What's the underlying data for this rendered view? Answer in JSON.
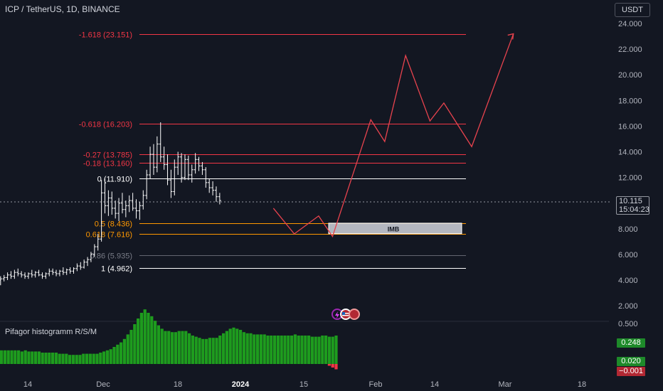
{
  "header": {
    "symbol_title": "ICP / TetherUS, 1D, BINANCE",
    "currency": "USDT"
  },
  "indicator": {
    "title": "Pifagor histogramm R/S/M"
  },
  "last_price": {
    "value": "10.115",
    "countdown": "15:04:23"
  },
  "indicator_badges": [
    "0.248",
    "0.020",
    "−0.001"
  ],
  "colors": {
    "background": "#131722",
    "fib_red": "#f23645",
    "fib_orange": "#ff9800",
    "fib_white": "#ffffff",
    "fib_gray": "#787b86",
    "hist_green": "#4caf50",
    "hist_red": "#f23645",
    "path_red": "#e8434e",
    "imb_box": "#d1d4dc"
  },
  "icons": [
    "lightning-event-icon",
    "us-flag-event-icon",
    "economic-event-icon"
  ],
  "chart_data": {
    "type": "candlestick",
    "symbol": "ICP / TetherUS",
    "timeframe": "1D",
    "exchange": "BINANCE",
    "price_axis": {
      "ticks": [
        "24.000",
        "22.000",
        "20.000",
        "18.000",
        "16.000",
        "14.000",
        "12.000",
        "10.000",
        "8.000",
        "6.000",
        "4.000",
        "2.000"
      ],
      "range": [
        1.0,
        24.5
      ]
    },
    "time_axis": {
      "labels": [
        "14",
        "Dec",
        "18",
        "2024",
        "15",
        "Feb",
        "14",
        "Mar",
        "18"
      ]
    },
    "fib_levels": [
      {
        "label": "-1.618 (23.151)",
        "price": 23.151,
        "color": "red"
      },
      {
        "label": "-0.618 (16.203)",
        "price": 16.203,
        "color": "red"
      },
      {
        "label": "-0.27 (13.785)",
        "price": 13.785,
        "color": "red"
      },
      {
        "label": "-0.18 (13.160)",
        "price": 13.16,
        "color": "red"
      },
      {
        "label": "0 (11.910)",
        "price": 11.91,
        "color": "white"
      },
      {
        "label": "0.5 (8.436)",
        "price": 8.436,
        "color": "orange"
      },
      {
        "label": "0.618 (7.616)",
        "price": 7.616,
        "color": "orange"
      },
      {
        "label": "0.86 (5.935)",
        "price": 5.935,
        "color": "gray"
      },
      {
        "label": "1 (4.962)",
        "price": 4.962,
        "color": "white"
      }
    ],
    "imbalance_zone": {
      "label": "IMB",
      "top": 8.436,
      "bottom": 7.616
    },
    "projection_path": [
      {
        "date": "Jan 21",
        "price": 9.6
      },
      {
        "date": "Jan 27",
        "price": 7.6
      },
      {
        "date": "Feb 3",
        "price": 9.0
      },
      {
        "date": "Feb 7",
        "price": 7.4
      },
      {
        "date": "Feb 18",
        "price": 16.5
      },
      {
        "date": "Feb 22",
        "price": 14.8
      },
      {
        "date": "Feb 28",
        "price": 21.5
      },
      {
        "date": "Mar 6",
        "price": 16.4
      },
      {
        "date": "Mar 10",
        "price": 17.8
      },
      {
        "date": "Mar 18",
        "price": 14.4
      },
      {
        "date": "Mar 30",
        "price": 23.2
      }
    ],
    "candles": [
      [
        4.0,
        4.3,
        3.6,
        4.1
      ],
      [
        4.1,
        4.4,
        3.9,
        4.2
      ],
      [
        4.2,
        4.6,
        4.0,
        4.4
      ],
      [
        4.4,
        4.7,
        4.1,
        4.3
      ],
      [
        4.3,
        4.8,
        4.1,
        4.6
      ],
      [
        4.6,
        4.9,
        4.3,
        4.5
      ],
      [
        4.5,
        4.7,
        4.2,
        4.4
      ],
      [
        4.4,
        4.6,
        4.1,
        4.3
      ],
      [
        4.3,
        4.6,
        4.1,
        4.5
      ],
      [
        4.5,
        4.8,
        4.2,
        4.4
      ],
      [
        4.4,
        4.7,
        4.2,
        4.6
      ],
      [
        4.6,
        4.8,
        4.3,
        4.4
      ],
      [
        4.4,
        4.6,
        4.1,
        4.3
      ],
      [
        4.3,
        4.6,
        4.1,
        4.5
      ],
      [
        4.5,
        4.9,
        4.3,
        4.7
      ],
      [
        4.7,
        4.9,
        4.4,
        4.6
      ],
      [
        4.6,
        4.8,
        4.3,
        4.5
      ],
      [
        4.5,
        4.8,
        4.3,
        4.7
      ],
      [
        4.7,
        5.0,
        4.4,
        4.6
      ],
      [
        4.6,
        4.9,
        4.4,
        4.8
      ],
      [
        4.8,
        5.0,
        4.5,
        4.7
      ],
      [
        4.7,
        5.0,
        4.5,
        4.9
      ],
      [
        4.9,
        5.3,
        4.7,
        5.1
      ],
      [
        5.1,
        5.4,
        4.8,
        5.0
      ],
      [
        5.0,
        5.6,
        4.9,
        5.4
      ],
      [
        5.4,
        5.8,
        5.1,
        5.6
      ],
      [
        5.6,
        6.2,
        5.4,
        6.0
      ],
      [
        6.0,
        6.8,
        5.8,
        6.6
      ],
      [
        6.6,
        7.6,
        6.3,
        7.2
      ],
      [
        7.2,
        11.8,
        7.0,
        10.8
      ],
      [
        10.8,
        11.9,
        9.2,
        9.8
      ],
      [
        9.8,
        11.0,
        9.0,
        10.4
      ],
      [
        10.4,
        10.9,
        9.1,
        9.6
      ],
      [
        9.6,
        10.2,
        8.8,
        9.2
      ],
      [
        9.2,
        10.4,
        8.6,
        10.0
      ],
      [
        10.0,
        10.8,
        9.2,
        9.5
      ],
      [
        9.5,
        10.2,
        8.9,
        9.8
      ],
      [
        9.8,
        10.6,
        9.3,
        10.2
      ],
      [
        10.2,
        10.8,
        9.4,
        9.6
      ],
      [
        9.6,
        10.3,
        8.8,
        9.4
      ],
      [
        9.4,
        10.1,
        8.7,
        9.8
      ],
      [
        9.8,
        11.0,
        9.5,
        10.6
      ],
      [
        10.6,
        12.6,
        10.3,
        12.2
      ],
      [
        12.2,
        14.4,
        11.9,
        13.8
      ],
      [
        13.8,
        14.6,
        12.2,
        12.8
      ],
      [
        12.8,
        15.2,
        12.4,
        14.6
      ],
      [
        14.6,
        16.3,
        13.2,
        13.6
      ],
      [
        13.6,
        14.4,
        12.6,
        13.0
      ],
      [
        13.0,
        13.8,
        11.4,
        11.8
      ],
      [
        11.8,
        12.6,
        10.4,
        10.9
      ],
      [
        10.9,
        13.4,
        10.6,
        12.8
      ],
      [
        12.8,
        14.0,
        12.2,
        13.6
      ],
      [
        13.6,
        13.9,
        11.6,
        12.0
      ],
      [
        12.0,
        13.8,
        11.8,
        13.4
      ],
      [
        13.4,
        13.7,
        11.8,
        12.2
      ],
      [
        12.2,
        13.0,
        11.6,
        12.6
      ],
      [
        12.6,
        13.9,
        12.3,
        13.4
      ],
      [
        13.4,
        13.6,
        12.5,
        12.9
      ],
      [
        12.9,
        13.2,
        12.2,
        12.6
      ],
      [
        12.6,
        12.8,
        11.2,
        11.6
      ],
      [
        11.6,
        11.9,
        10.8,
        11.2
      ],
      [
        11.2,
        11.7,
        10.6,
        11.0
      ],
      [
        11.0,
        11.3,
        10.1,
        10.5
      ],
      [
        10.5,
        10.8,
        9.9,
        10.2
      ]
    ],
    "histogram_axis": {
      "ticks": [
        "0.500"
      ]
    },
    "histogram": [
      0.12,
      0.12,
      0.12,
      0.12,
      0.12,
      0.12,
      0.11,
      0.12,
      0.11,
      0.11,
      0.11,
      0.11,
      0.1,
      0.1,
      0.1,
      0.1,
      0.1,
      0.09,
      0.09,
      0.09,
      0.08,
      0.08,
      0.08,
      0.08,
      0.09,
      0.09,
      0.09,
      0.09,
      0.09,
      0.1,
      0.11,
      0.12,
      0.13,
      0.15,
      0.17,
      0.19,
      0.22,
      0.26,
      0.3,
      0.35,
      0.4,
      0.45,
      0.48,
      0.45,
      0.42,
      0.38,
      0.34,
      0.31,
      0.29,
      0.29,
      0.28,
      0.28,
      0.29,
      0.29,
      0.29,
      0.27,
      0.25,
      0.24,
      0.23,
      0.22,
      0.22,
      0.23,
      0.23,
      0.23,
      0.25,
      0.27,
      0.29,
      0.31,
      0.32,
      0.31,
      0.3,
      0.28,
      0.27,
      0.27,
      0.26,
      0.26,
      0.26,
      0.26,
      0.25,
      0.25,
      0.25,
      0.25,
      0.25,
      0.25,
      0.25,
      0.25,
      0.26,
      0.25,
      0.25,
      0.25,
      0.25,
      0.24,
      0.24,
      0.24,
      0.25,
      0.25,
      0.24,
      0.24,
      0.25
    ],
    "histogram_negative": [
      0.01,
      0.02,
      0.03
    ]
  }
}
